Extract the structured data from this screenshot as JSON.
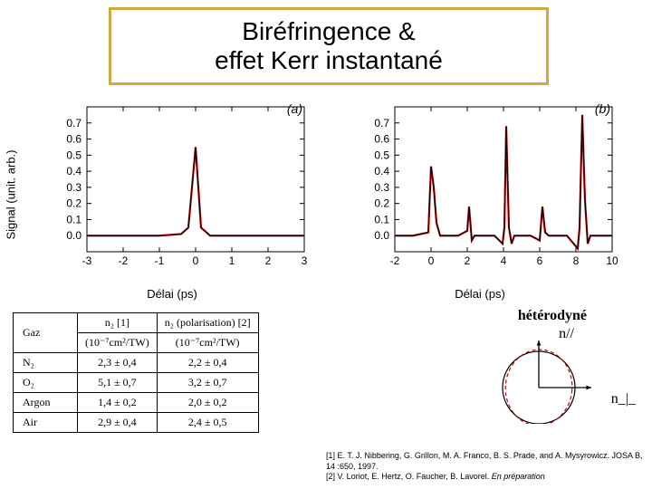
{
  "title": "Biréfringence &\neffet Kerr instantané",
  "title_border_color": "#d4a83a",
  "chart_a": {
    "tag": "(a)",
    "ylabel": "Signal (unit. arb.)",
    "xlabel": "Délai (ps)",
    "xlim": [
      -3,
      3
    ],
    "xtick_step": 1,
    "ylim": [
      -0.1,
      0.8
    ],
    "yticks": [
      0.0,
      0.1,
      0.2,
      0.3,
      0.4,
      0.5,
      0.6,
      0.7
    ],
    "line_color_1": "#c00000",
    "line_color_2": "#000000",
    "series": [
      {
        "x": -3.0,
        "y": 0.0
      },
      {
        "x": -2.0,
        "y": 0.0
      },
      {
        "x": -1.0,
        "y": 0.0
      },
      {
        "x": -0.4,
        "y": 0.01
      },
      {
        "x": -0.2,
        "y": 0.05
      },
      {
        "x": 0.0,
        "y": 0.55
      },
      {
        "x": 0.15,
        "y": 0.05
      },
      {
        "x": 0.4,
        "y": 0.0
      },
      {
        "x": 1.0,
        "y": 0.0
      },
      {
        "x": 2.0,
        "y": 0.0
      },
      {
        "x": 3.0,
        "y": 0.0
      }
    ]
  },
  "chart_b": {
    "tag": "(b)",
    "xlabel": "Délai (ps)",
    "xlim": [
      -2,
      10
    ],
    "xtick_step": 2,
    "ylim": [
      -0.1,
      0.8
    ],
    "yticks": [
      0.0,
      0.1,
      0.2,
      0.3,
      0.4,
      0.5,
      0.6,
      0.7
    ],
    "line_color_1": "#c00000",
    "line_color_2": "#000000",
    "series": [
      {
        "x": -2.0,
        "y": 0.0
      },
      {
        "x": -1.0,
        "y": 0.0
      },
      {
        "x": -0.15,
        "y": 0.02
      },
      {
        "x": 0.0,
        "y": 0.43
      },
      {
        "x": 0.15,
        "y": 0.3
      },
      {
        "x": 0.3,
        "y": 0.08
      },
      {
        "x": 0.5,
        "y": 0.0
      },
      {
        "x": 1.5,
        "y": 0.0
      },
      {
        "x": 2.0,
        "y": 0.03
      },
      {
        "x": 2.1,
        "y": 0.18
      },
      {
        "x": 2.25,
        "y": -0.03
      },
      {
        "x": 2.4,
        "y": 0.0
      },
      {
        "x": 3.5,
        "y": 0.0
      },
      {
        "x": 3.95,
        "y": -0.05
      },
      {
        "x": 4.05,
        "y": 0.05
      },
      {
        "x": 4.15,
        "y": 0.68
      },
      {
        "x": 4.3,
        "y": 0.05
      },
      {
        "x": 4.45,
        "y": -0.05
      },
      {
        "x": 4.6,
        "y": 0.0
      },
      {
        "x": 5.5,
        "y": 0.0
      },
      {
        "x": 6.0,
        "y": -0.03
      },
      {
        "x": 6.15,
        "y": 0.18
      },
      {
        "x": 6.3,
        "y": 0.02
      },
      {
        "x": 6.5,
        "y": 0.0
      },
      {
        "x": 7.5,
        "y": 0.0
      },
      {
        "x": 8.1,
        "y": -0.08
      },
      {
        "x": 8.2,
        "y": 0.05
      },
      {
        "x": 8.35,
        "y": 0.75
      },
      {
        "x": 8.5,
        "y": 0.22
      },
      {
        "x": 8.65,
        "y": -0.05
      },
      {
        "x": 8.8,
        "y": 0.0
      },
      {
        "x": 10.0,
        "y": 0.0
      }
    ]
  },
  "table": {
    "head_gas": "Gaz",
    "head_c1_top": "n₂ [1]",
    "head_c2_top": "n₂ (polarisation) [2]",
    "head_unit": "(10⁻⁷cm²/TW)",
    "rows": [
      {
        "gas": "N₂",
        "c1": "2,3 ± 0,4",
        "c2": "2,2 ± 0,4"
      },
      {
        "gas": "O₂",
        "c1": "5,1 ± 0,7",
        "c2": "3,2 ± 0,7"
      },
      {
        "gas": "Argon",
        "c1": "1,4 ± 0,2",
        "c2": "2,0 ± 0,2"
      },
      {
        "gas": "Air",
        "c1": "2,9 ± 0,4",
        "c2": "2,4 ± 0,5"
      }
    ]
  },
  "hetero_label": "hétérodyné",
  "n_para_label": "n//",
  "n_perp_label": "n_|_",
  "diagram": {
    "circle_color": "#000000",
    "dashed_color": "#c00000",
    "axis_color": "#000000"
  },
  "refs": {
    "r1": "[1] E. T. J. Nibbering, G. Grillon, M. A. Franco, B. S. Prade, and A. Mysyrowicz. JOSA B, 14 :650, 1997.",
    "r2_prefix": "[2] V. Loriot, E. Hertz, O. Faucher, B. Lavorel. ",
    "r2_italic": "En préparation"
  }
}
